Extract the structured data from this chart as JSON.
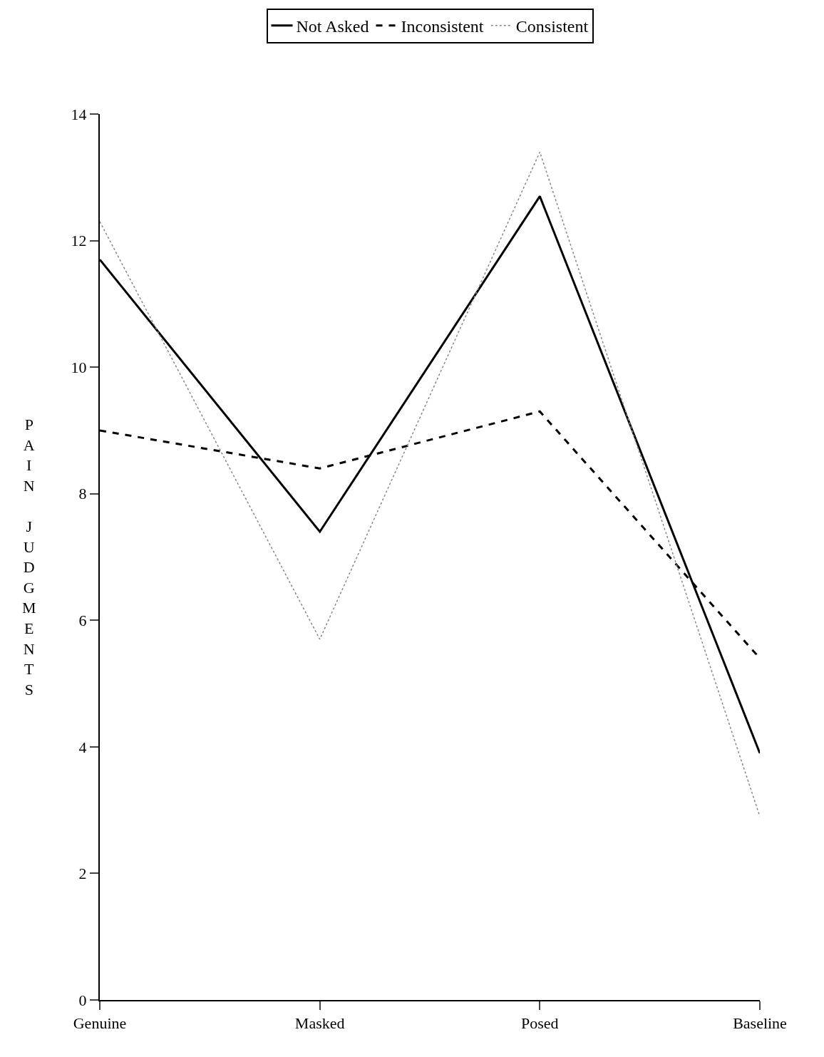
{
  "chart_data": {
    "type": "line",
    "ylabel": "PAIN JUDGMENTS",
    "categories": [
      "Genuine",
      "Masked",
      "Posed",
      "Baseline"
    ],
    "series": [
      {
        "name": "Not Asked",
        "color": "#000000",
        "line_style": "solid",
        "values": [
          11.7,
          7.4,
          12.7,
          3.9
        ]
      },
      {
        "name": "Inconsistent",
        "color": "#000000",
        "line_style": "dashed",
        "values": [
          9.0,
          8.4,
          9.3,
          5.4
        ]
      },
      {
        "name": "Consistent",
        "color": "#888888",
        "line_style": "dotted",
        "values": [
          12.3,
          5.7,
          13.4,
          2.9
        ]
      }
    ],
    "ylim": [
      0,
      14
    ],
    "yticks": [
      0,
      2,
      4,
      6,
      8,
      10,
      12,
      14
    ],
    "legend": "top",
    "marker": "none"
  }
}
